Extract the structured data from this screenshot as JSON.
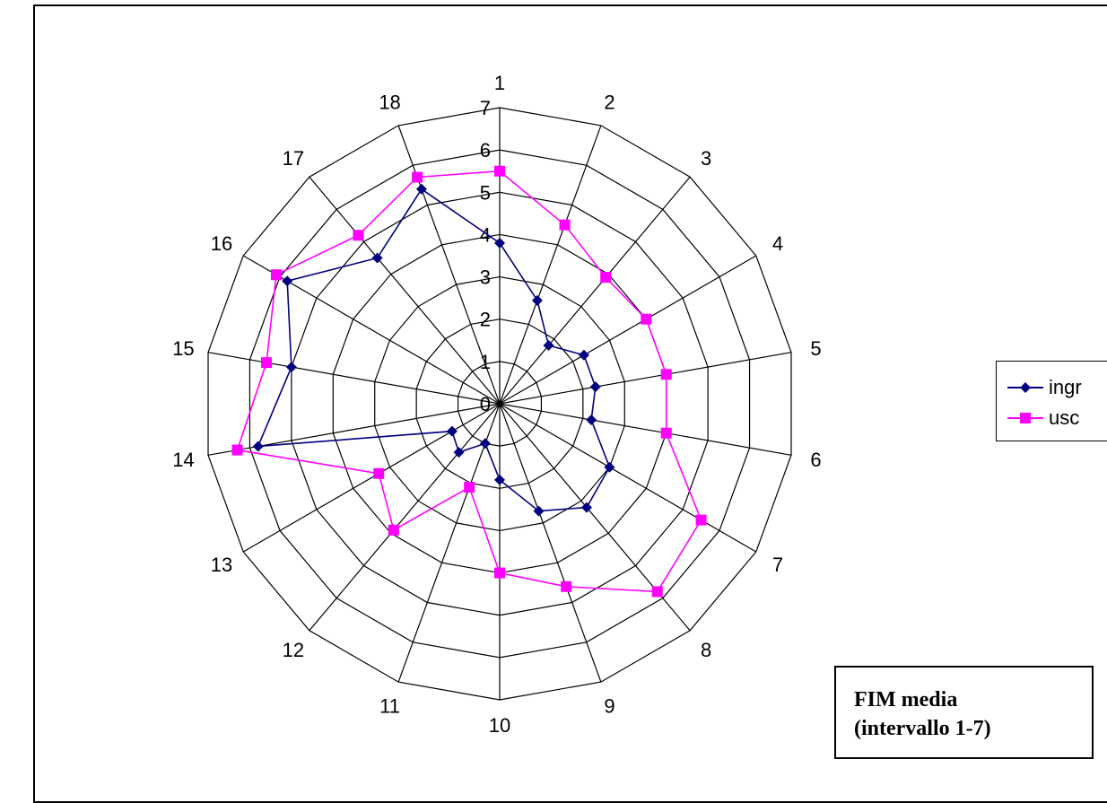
{
  "chart_data": {
    "type": "radar",
    "categories": [
      "1",
      "2",
      "3",
      "4",
      "5",
      "6",
      "7",
      "8",
      "9",
      "10",
      "11",
      "12",
      "13",
      "14",
      "15",
      "16",
      "17",
      "18"
    ],
    "radial_ticks": [
      "0",
      "1",
      "2",
      "3",
      "4",
      "5",
      "6",
      "7"
    ],
    "rlim": [
      0,
      7
    ],
    "grid": true,
    "series": [
      {
        "name": "ingr",
        "color": "#000080",
        "marker": "diamond",
        "values": [
          3.8,
          2.6,
          1.8,
          2.3,
          2.3,
          2.2,
          3.0,
          3.2,
          2.7,
          1.8,
          1.0,
          1.5,
          1.3,
          5.8,
          5.0,
          5.8,
          4.5,
          5.4
        ]
      },
      {
        "name": "usc",
        "color": "#FF00FF",
        "marker": "square",
        "values": [
          5.5,
          4.5,
          3.9,
          4.0,
          4.0,
          4.0,
          5.5,
          5.8,
          4.6,
          4.0,
          2.1,
          3.9,
          3.3,
          6.3,
          5.6,
          6.1,
          5.2,
          5.7
        ]
      }
    ],
    "legend_position": "right"
  },
  "annotation": {
    "line1": "FIM media",
    "line2": "(intervallo 1-7)"
  }
}
